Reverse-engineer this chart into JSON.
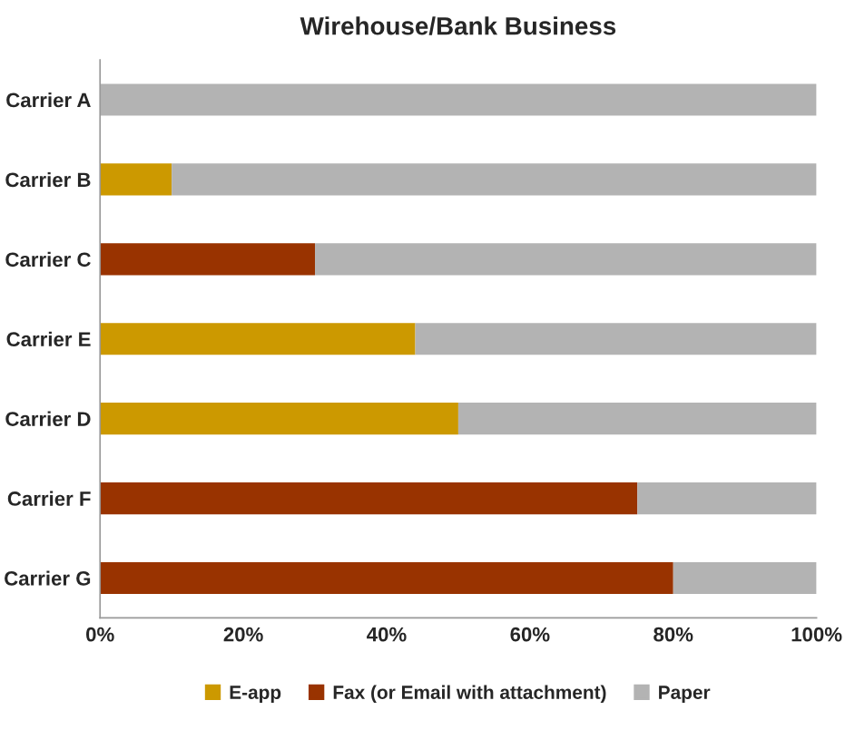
{
  "chart_data": {
    "type": "bar",
    "orientation": "horizontal",
    "stacked": true,
    "title": "Wirehouse/Bank Business",
    "categories": [
      "Carrier A",
      "Carrier B",
      "Carrier C",
      "Carrier E",
      "Carrier D",
      "Carrier F",
      "Carrier G"
    ],
    "series": [
      {
        "name": "E-app",
        "color": "#cc9900",
        "values": [
          0,
          10,
          0,
          44,
          50,
          0,
          0
        ]
      },
      {
        "name": "Fax (or Email with attachment)",
        "color": "#993300",
        "values": [
          0,
          0,
          30,
          0,
          0,
          75,
          80
        ]
      },
      {
        "name": "Paper",
        "color": "#b3b3b3",
        "values": [
          100,
          90,
          70,
          56,
          50,
          25,
          20
        ]
      }
    ],
    "xlim": [
      0,
      100
    ],
    "xticks": [
      {
        "value": 0,
        "label": "0%"
      },
      {
        "value": 20,
        "label": "20%"
      },
      {
        "value": 40,
        "label": "40%"
      },
      {
        "value": 60,
        "label": "60%"
      },
      {
        "value": 80,
        "label": "80%"
      },
      {
        "value": 100,
        "label": "100%"
      }
    ],
    "grid": false,
    "legend": "bottom"
  }
}
